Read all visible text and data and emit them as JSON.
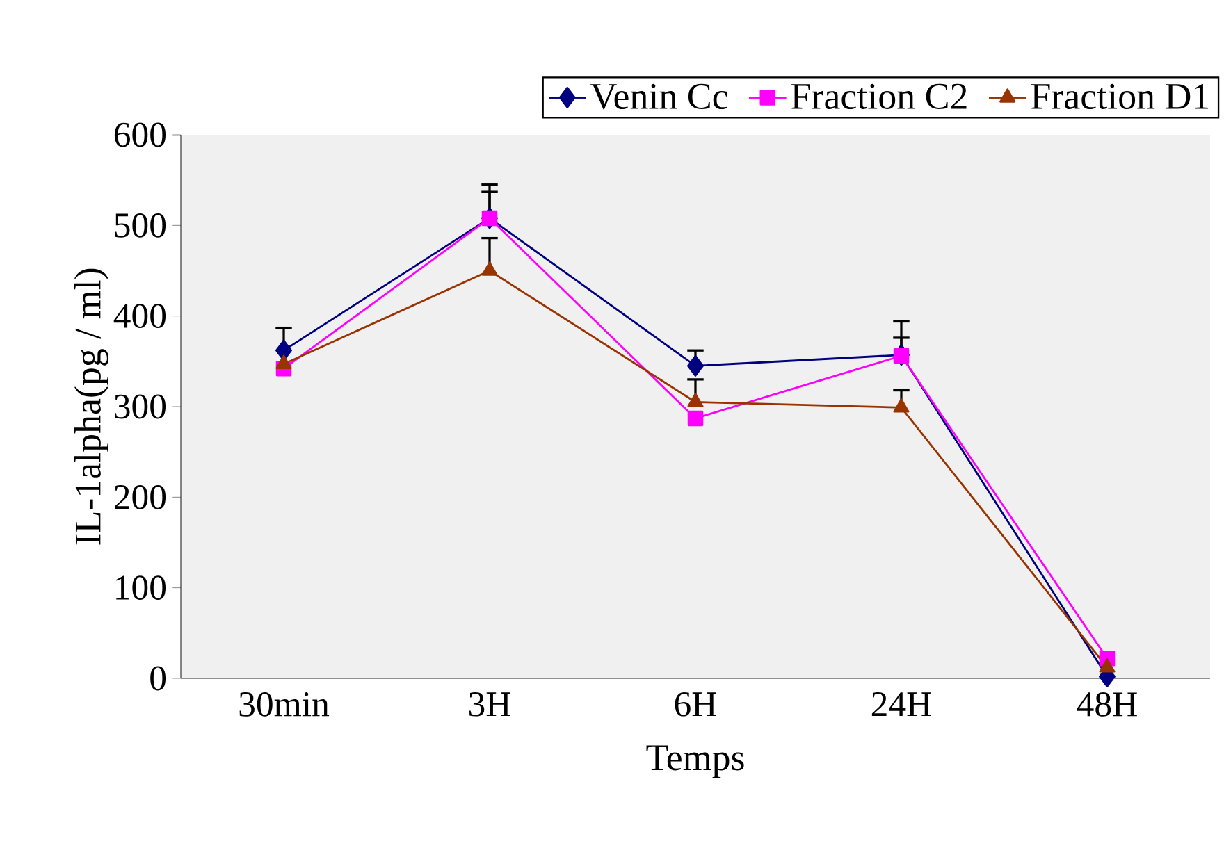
{
  "chart_data": {
    "type": "line",
    "xlabel": "Temps",
    "ylabel": "IL-1alpha(pg / ml)",
    "categories": [
      "30min",
      "3H",
      "6H",
      "24H",
      "48H"
    ],
    "ylim": [
      0,
      600
    ],
    "yticks": [
      0,
      100,
      200,
      300,
      400,
      500,
      600
    ],
    "grid": false,
    "legend": "top",
    "series": [
      {
        "name": "Venin Cc",
        "color": "#000080",
        "marker": "diamond",
        "values": [
          362,
          508,
          345,
          357,
          2
        ],
        "errors": [
          [
            362,
            387
          ],
          [
            508,
            545
          ],
          [
            345,
            362
          ],
          [
            357,
            394
          ],
          null
        ]
      },
      {
        "name": "Fraction C2",
        "color": "#ff00ff",
        "marker": "square",
        "values": [
          342,
          508,
          287,
          356,
          22
        ],
        "errors": [
          null,
          [
            508,
            537
          ],
          null,
          [
            356,
            376
          ],
          null
        ]
      },
      {
        "name": "Fraction D1",
        "color": "#993300",
        "marker": "triangle",
        "values": [
          347,
          450,
          305,
          299,
          12
        ],
        "errors": [
          null,
          [
            450,
            486
          ],
          [
            305,
            330
          ],
          [
            299,
            318
          ],
          null
        ]
      }
    ]
  }
}
